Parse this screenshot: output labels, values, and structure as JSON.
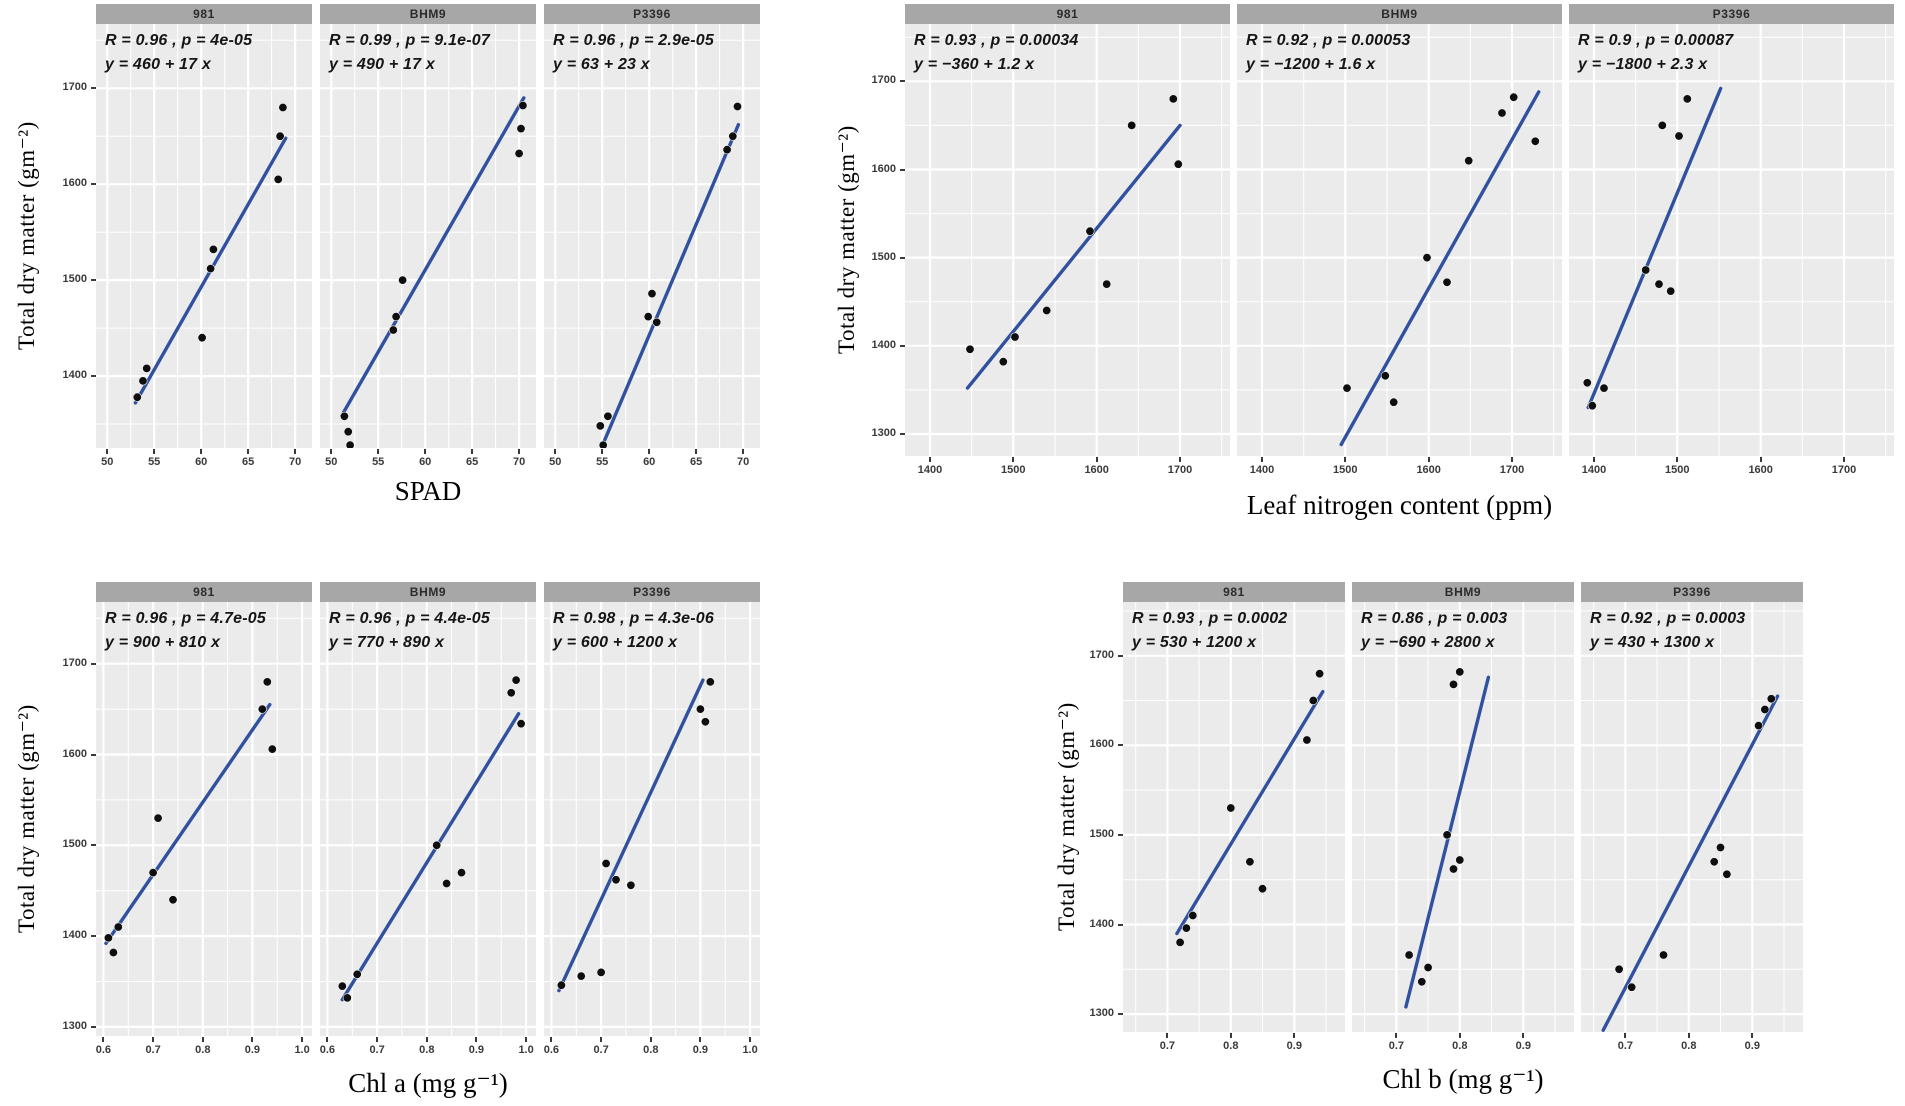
{
  "colors": {
    "panel_bg": "#ebebeb",
    "strip_bg": "#a7a7a7",
    "strip_text": "#2b2b2b",
    "grid": "#ffffff",
    "line": "#31519f",
    "point": "#0e0e0e",
    "annotation_text": "#151515",
    "axis_tick_text": "#3a3a3a",
    "axis_title_text": "#000000"
  },
  "chart_data": [
    {
      "type": "scatter",
      "position": "top-left",
      "xlabel": "SPAD",
      "ylabel": "Total dry matter (gm⁻²)",
      "grid": true,
      "legend": "none",
      "xlim": [
        48.8,
        71.8
      ],
      "ylim": [
        1325,
        1767
      ],
      "x_ticks": [
        50,
        55,
        60,
        65,
        70
      ],
      "x_tick_labels": [
        "50",
        "55",
        "60",
        "65",
        "70"
      ],
      "y_ticks": [
        1400,
        1500,
        1600,
        1700
      ],
      "y_tick_labels": [
        "1400",
        "1500",
        "1600",
        "1700"
      ],
      "facets": [
        {
          "label": "981",
          "stats": "R = 0.96 , p = 4e-05",
          "equation": "y = 460 + 17 x",
          "line": [
            [
              53.0,
              1372
            ],
            [
              69.0,
              1648
            ]
          ],
          "points": [
            [
              53.2,
              1378
            ],
            [
              53.8,
              1395
            ],
            [
              54.2,
              1408
            ],
            [
              60.1,
              1440
            ],
            [
              61.0,
              1512
            ],
            [
              61.3,
              1532
            ],
            [
              68.2,
              1605
            ],
            [
              68.4,
              1650
            ],
            [
              68.7,
              1680
            ]
          ]
        },
        {
          "label": "BHM9",
          "stats": "R = 0.99 , p = 9.1e-07",
          "equation": "y = 490 + 17 x",
          "line": [
            [
              51.3,
              1362
            ],
            [
              70.5,
              1690
            ]
          ],
          "points": [
            [
              51.4,
              1358
            ],
            [
              51.8,
              1342
            ],
            [
              52.0,
              1328
            ],
            [
              56.6,
              1448
            ],
            [
              56.9,
              1462
            ],
            [
              57.6,
              1500
            ],
            [
              70.0,
              1632
            ],
            [
              70.2,
              1658
            ],
            [
              70.4,
              1682
            ]
          ]
        },
        {
          "label": "P3396",
          "stats": "R = 0.96 , p = 2.9e-05",
          "equation": "y = 63 + 23 x",
          "line": [
            [
              54.6,
              1318
            ],
            [
              69.5,
              1662
            ]
          ],
          "points": [
            [
              54.8,
              1348
            ],
            [
              55.1,
              1328
            ],
            [
              55.6,
              1358
            ],
            [
              59.9,
              1462
            ],
            [
              60.3,
              1486
            ],
            [
              60.8,
              1456
            ],
            [
              68.3,
              1636
            ],
            [
              68.9,
              1650
            ],
            [
              69.4,
              1681
            ]
          ]
        }
      ]
    },
    {
      "type": "scatter",
      "position": "top-right",
      "xlabel": "Leaf nitrogen content (ppm)",
      "ylabel": "Total dry matter (gm⁻²)",
      "grid": true,
      "legend": "none",
      "xlim": [
        1370,
        1760
      ],
      "ylim": [
        1275,
        1765
      ],
      "x_ticks": [
        1400,
        1500,
        1600,
        1700
      ],
      "x_tick_labels": [
        "1400",
        "1500",
        "1600",
        "1700"
      ],
      "y_ticks": [
        1300,
        1400,
        1500,
        1600,
        1700
      ],
      "y_tick_labels": [
        "1300",
        "1400",
        "1500",
        "1600",
        "1700"
      ],
      "facets": [
        {
          "label": "981",
          "stats": "R = 0.93 , p = 0.00034",
          "equation": "y = −360 + 1.2 x",
          "line": [
            [
              1445,
              1352
            ],
            [
              1700,
              1650
            ]
          ],
          "points": [
            [
              1448,
              1396
            ],
            [
              1488,
              1382
            ],
            [
              1502,
              1410
            ],
            [
              1540,
              1440
            ],
            [
              1592,
              1530
            ],
            [
              1612,
              1470
            ],
            [
              1642,
              1650
            ],
            [
              1692,
              1680
            ],
            [
              1698,
              1606
            ]
          ]
        },
        {
          "label": "BHM9",
          "stats": "R = 0.92 , p = 0.00053",
          "equation": "y = −1200 + 1.6 x",
          "line": [
            [
              1495,
              1288
            ],
            [
              1732,
              1688
            ]
          ],
          "points": [
            [
              1502,
              1352
            ],
            [
              1548,
              1366
            ],
            [
              1558,
              1336
            ],
            [
              1598,
              1500
            ],
            [
              1622,
              1472
            ],
            [
              1648,
              1610
            ],
            [
              1688,
              1664
            ],
            [
              1702,
              1682
            ],
            [
              1728,
              1632
            ]
          ]
        },
        {
          "label": "P3396",
          "stats": "R = 0.9 , p = 0.00087",
          "equation": "y = −1800 + 2.3 x",
          "line": [
            [
              1393,
              1330
            ],
            [
              1552,
              1692
            ]
          ],
          "points": [
            [
              1392,
              1358
            ],
            [
              1398,
              1332
            ],
            [
              1412,
              1352
            ],
            [
              1462,
              1486
            ],
            [
              1478,
              1470
            ],
            [
              1492,
              1462
            ],
            [
              1482,
              1650
            ],
            [
              1502,
              1638
            ],
            [
              1512,
              1680
            ]
          ]
        }
      ]
    },
    {
      "type": "scatter",
      "position": "bottom-left",
      "xlabel": "Chl a (mg g⁻¹)",
      "ylabel": "Total dry matter (gm⁻²)",
      "grid": true,
      "legend": "none",
      "xlim": [
        0.585,
        1.02
      ],
      "ylim": [
        1290,
        1768
      ],
      "x_ticks": [
        0.6,
        0.7,
        0.8,
        0.9,
        1.0
      ],
      "x_tick_labels": [
        "0.6",
        "0.7",
        "0.8",
        "0.9",
        "1.0"
      ],
      "y_ticks": [
        1300,
        1400,
        1500,
        1600,
        1700
      ],
      "y_tick_labels": [
        "1300",
        "1400",
        "1500",
        "1600",
        "1700"
      ],
      "facets": [
        {
          "label": "981",
          "stats": "R = 0.96 , p = 4.7e-05",
          "equation": "y = 900 + 810 x",
          "line": [
            [
              0.605,
              1392
            ],
            [
              0.935,
              1655
            ]
          ],
          "points": [
            [
              0.61,
              1398
            ],
            [
              0.62,
              1382
            ],
            [
              0.63,
              1410
            ],
            [
              0.7,
              1470
            ],
            [
              0.71,
              1530
            ],
            [
              0.74,
              1440
            ],
            [
              0.92,
              1650
            ],
            [
              0.93,
              1680
            ],
            [
              0.94,
              1606
            ]
          ]
        },
        {
          "label": "BHM9",
          "stats": "R = 0.96 , p = 4.4e-05",
          "equation": "y = 770 + 890 x",
          "line": [
            [
              0.63,
              1330
            ],
            [
              0.985,
              1645
            ]
          ],
          "points": [
            [
              0.63,
              1345
            ],
            [
              0.64,
              1332
            ],
            [
              0.66,
              1358
            ],
            [
              0.82,
              1500
            ],
            [
              0.84,
              1458
            ],
            [
              0.87,
              1470
            ],
            [
              0.97,
              1668
            ],
            [
              0.98,
              1682
            ],
            [
              0.99,
              1634
            ]
          ]
        },
        {
          "label": "P3396",
          "stats": "R = 0.98 , p = 4.3e-06",
          "equation": "y = 600 + 1200 x",
          "line": [
            [
              0.615,
              1340
            ],
            [
              0.905,
              1682
            ]
          ],
          "points": [
            [
              0.62,
              1346
            ],
            [
              0.66,
              1356
            ],
            [
              0.7,
              1360
            ],
            [
              0.71,
              1480
            ],
            [
              0.73,
              1462
            ],
            [
              0.76,
              1456
            ],
            [
              0.9,
              1650
            ],
            [
              0.91,
              1636
            ],
            [
              0.92,
              1680
            ]
          ]
        }
      ]
    },
    {
      "type": "scatter",
      "position": "bottom-right",
      "xlabel": "Chl b (mg g⁻¹)",
      "ylabel": "Total dry matter (gm⁻²)",
      "grid": true,
      "legend": "none",
      "xlim": [
        0.63,
        0.98
      ],
      "ylim": [
        1280,
        1760
      ],
      "x_ticks": [
        0.7,
        0.8,
        0.9
      ],
      "x_tick_labels": [
        "0.7",
        "0.8",
        "0.9"
      ],
      "y_ticks": [
        1300,
        1400,
        1500,
        1600,
        1700
      ],
      "y_tick_labels": [
        "1300",
        "1400",
        "1500",
        "1600",
        "1700"
      ],
      "facets": [
        {
          "label": "981",
          "stats": "R = 0.93 , p = 0.0002",
          "equation": "y = 530 + 1200 x",
          "line": [
            [
              0.715,
              1390
            ],
            [
              0.945,
              1660
            ]
          ],
          "points": [
            [
              0.72,
              1380
            ],
            [
              0.73,
              1396
            ],
            [
              0.74,
              1410
            ],
            [
              0.8,
              1530
            ],
            [
              0.83,
              1470
            ],
            [
              0.85,
              1440
            ],
            [
              0.92,
              1606
            ],
            [
              0.93,
              1650
            ],
            [
              0.94,
              1680
            ]
          ]
        },
        {
          "label": "BHM9",
          "stats": "R = 0.86 , p = 0.003",
          "equation": "y = −690 + 2800 x",
          "line": [
            [
              0.715,
              1308
            ],
            [
              0.845,
              1676
            ]
          ],
          "points": [
            [
              0.72,
              1366
            ],
            [
              0.74,
              1336
            ],
            [
              0.75,
              1352
            ],
            [
              0.78,
              1500
            ],
            [
              0.79,
              1462
            ],
            [
              0.8,
              1472
            ],
            [
              0.79,
              1668
            ],
            [
              0.8,
              1682
            ]
          ]
        },
        {
          "label": "P3396",
          "stats": "R = 0.92 , p = 0.0003",
          "equation": "y = 430 + 1300 x",
          "line": [
            [
              0.665,
              1282
            ],
            [
              0.94,
              1655
            ]
          ],
          "points": [
            [
              0.69,
              1350
            ],
            [
              0.71,
              1330
            ],
            [
              0.76,
              1366
            ],
            [
              0.84,
              1470
            ],
            [
              0.85,
              1486
            ],
            [
              0.86,
              1456
            ],
            [
              0.91,
              1622
            ],
            [
              0.92,
              1640
            ],
            [
              0.93,
              1652
            ]
          ]
        }
      ]
    }
  ]
}
